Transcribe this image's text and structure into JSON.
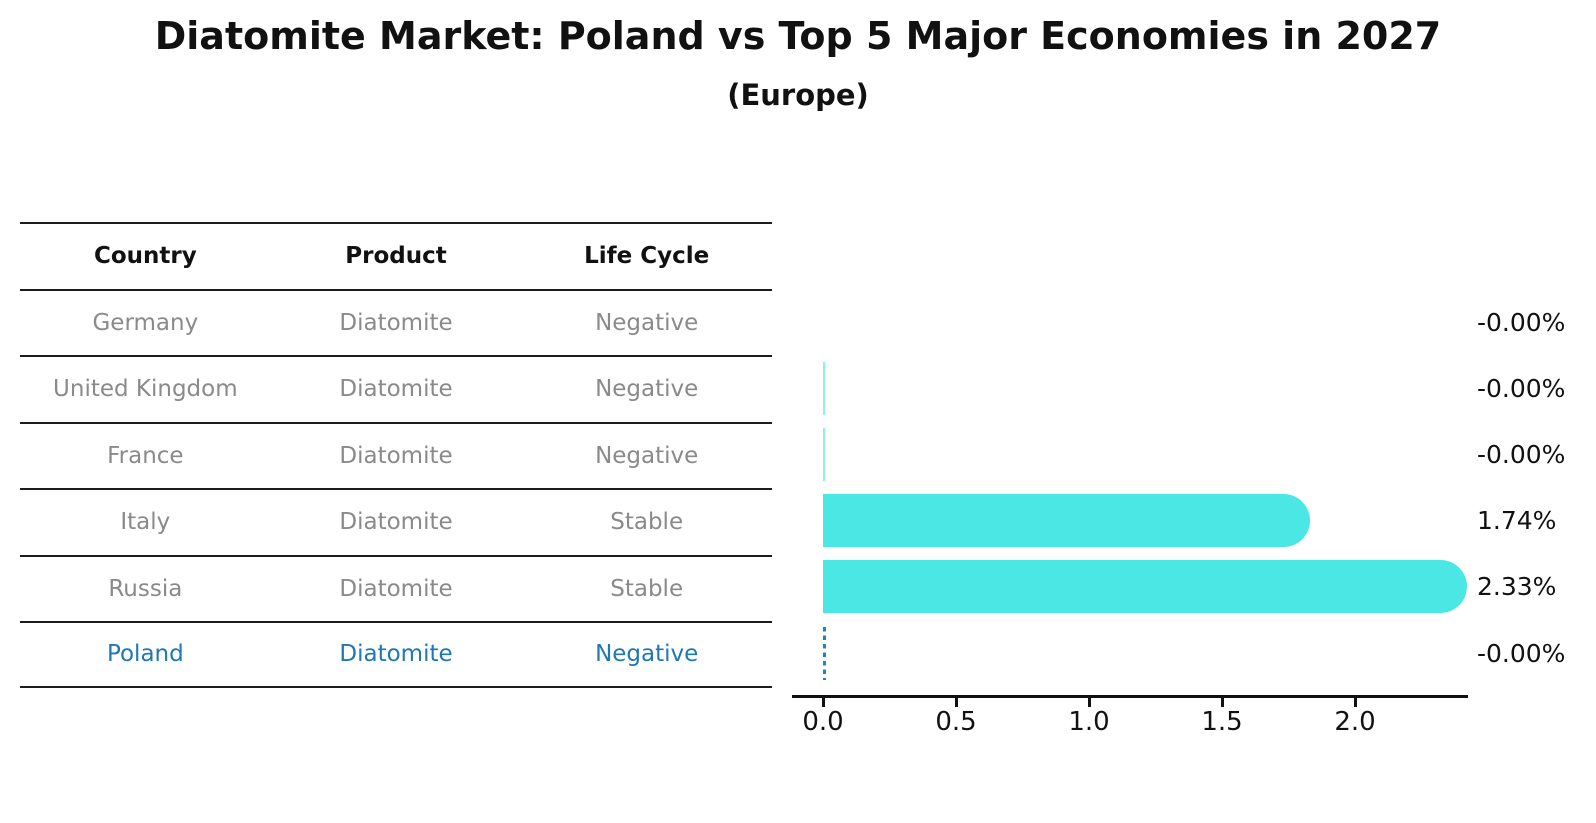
{
  "title": "Diatomite Market: Poland vs Top 5 Major Economies in 2027",
  "subtitle": "(Europe)",
  "table": {
    "headers": [
      "Country",
      "Product",
      "Life Cycle"
    ],
    "rows": [
      {
        "country": "Germany",
        "product": "Diatomite",
        "life_cycle": "Negative",
        "highlight": false
      },
      {
        "country": "United Kingdom",
        "product": "Diatomite",
        "life_cycle": "Negative",
        "highlight": false
      },
      {
        "country": "France",
        "product": "Diatomite",
        "life_cycle": "Negative",
        "highlight": false
      },
      {
        "country": "Italy",
        "product": "Diatomite",
        "life_cycle": "Stable",
        "highlight": false
      },
      {
        "country": "Russia",
        "product": "Diatomite",
        "life_cycle": "Stable",
        "highlight": false
      },
      {
        "country": "Poland",
        "product": "Diatomite",
        "life_cycle": "Negative",
        "highlight": true
      }
    ]
  },
  "chart_data": {
    "type": "bar",
    "orientation": "horizontal",
    "title": "Diatomite Market: Poland vs Top 5 Major Economies in 2027",
    "subtitle": "(Europe)",
    "categories": [
      "Germany",
      "United Kingdom",
      "France",
      "Italy",
      "Russia",
      "Poland"
    ],
    "values": [
      0.0,
      0.0,
      0.0,
      1.74,
      2.33,
      0.0
    ],
    "labels": [
      "-0.00%",
      "-0.00%",
      "-0.00%",
      "1.74%",
      "2.33%",
      "-0.00%"
    ],
    "unit": "percent",
    "xticks": [
      0.0,
      0.5,
      1.0,
      1.5,
      2.0
    ],
    "xtick_labels": [
      "0.0",
      "0.5",
      "1.0",
      "1.5",
      "2.0"
    ],
    "xlim": [
      -0.12,
      2.43
    ],
    "grid": false,
    "legend": false,
    "bar_color": "#4BE7E5",
    "highlight_color": "#1f77b4",
    "dashed_line_color": "#2580c8",
    "bar_styles": [
      "none",
      "hairline",
      "hairline",
      "solid",
      "solid",
      "dashed"
    ],
    "highlight_index": 5
  }
}
